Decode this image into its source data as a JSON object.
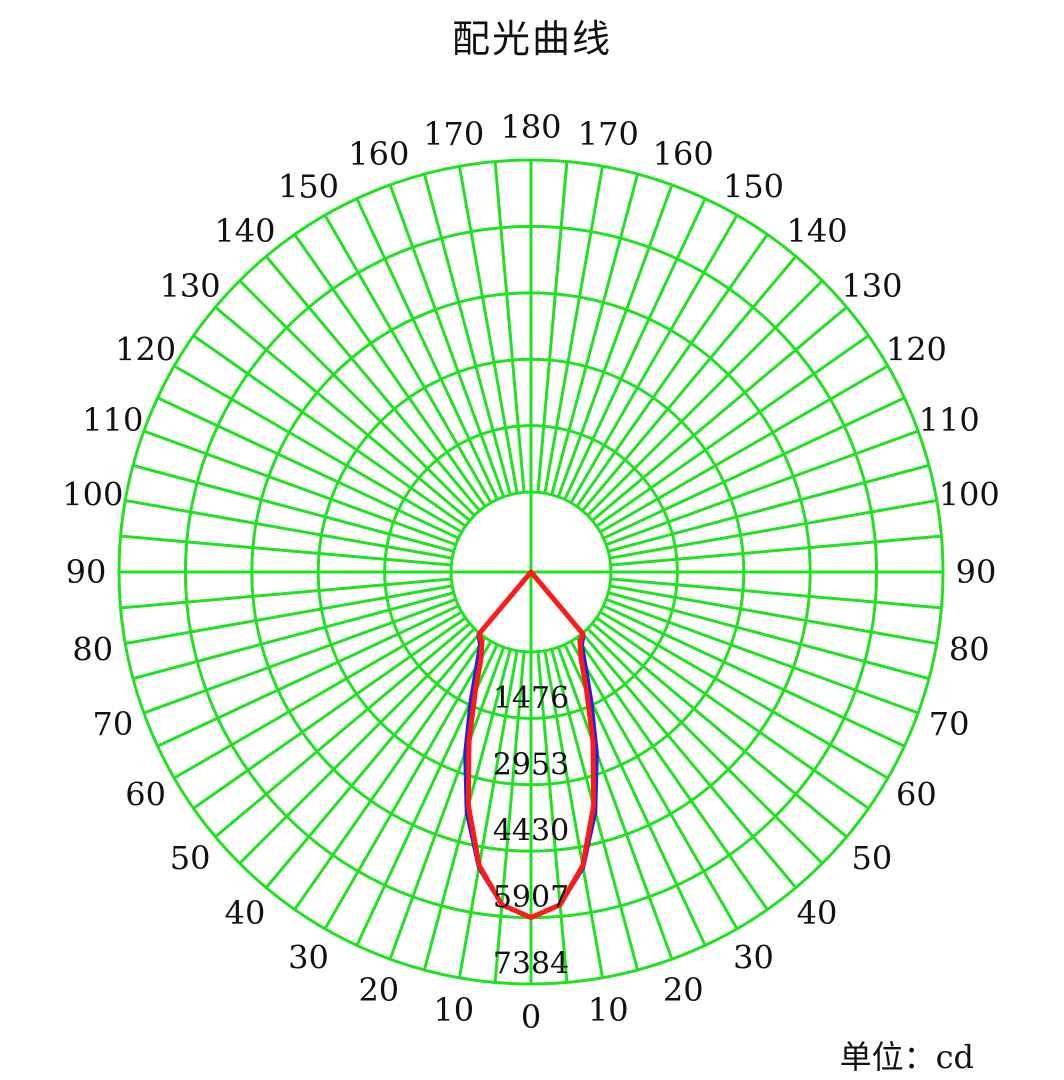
{
  "title": "配光曲线",
  "unit_label": "单位：",
  "unit_value": "cd",
  "colors": {
    "grid": "#22e022",
    "curve_c0": "#1f1fe6",
    "curve_c90": "#ff1a1a",
    "text": "#111111"
  },
  "chart_data": {
    "type": "polar",
    "title": "配光曲线",
    "unit": "cd",
    "r_max": 7384,
    "radial_ticks": [
      1476,
      2953,
      4430,
      5907,
      7384
    ],
    "angle_labels": {
      "left": [
        0,
        10,
        20,
        30,
        40,
        50,
        60,
        70,
        80,
        90,
        100,
        110,
        120,
        130,
        140,
        150,
        160,
        170,
        180
      ],
      "right": [
        10,
        20,
        30,
        40,
        50,
        60,
        70,
        80,
        90,
        100,
        110,
        120,
        130,
        140,
        150,
        160,
        170
      ]
    },
    "series": [
      {
        "color": "#1f1fe6",
        "points": [
          {
            "angle": 0,
            "value": 5907
          },
          {
            "angle": 5,
            "value": 5650
          },
          {
            "angle": 10,
            "value": 4900
          },
          {
            "angle": 15,
            "value": 3750
          },
          {
            "angle": 20,
            "value": 2500
          },
          {
            "angle": 25,
            "value": 1400
          },
          {
            "angle": 30,
            "value": 650
          },
          {
            "angle": 35,
            "value": 200
          },
          {
            "angle": 40,
            "value": 40
          },
          {
            "angle": 50,
            "value": 0
          }
        ]
      },
      {
        "color": "#ff1a1a",
        "points": [
          {
            "angle": 0,
            "value": 5907
          },
          {
            "angle": 5,
            "value": 5650
          },
          {
            "angle": 10,
            "value": 4850
          },
          {
            "angle": 15,
            "value": 3600
          },
          {
            "angle": 20,
            "value": 2250
          },
          {
            "angle": 25,
            "value": 1150
          },
          {
            "angle": 30,
            "value": 450
          },
          {
            "angle": 35,
            "value": 120
          },
          {
            "angle": 40,
            "value": 20
          },
          {
            "angle": 50,
            "value": 0
          }
        ]
      }
    ]
  }
}
